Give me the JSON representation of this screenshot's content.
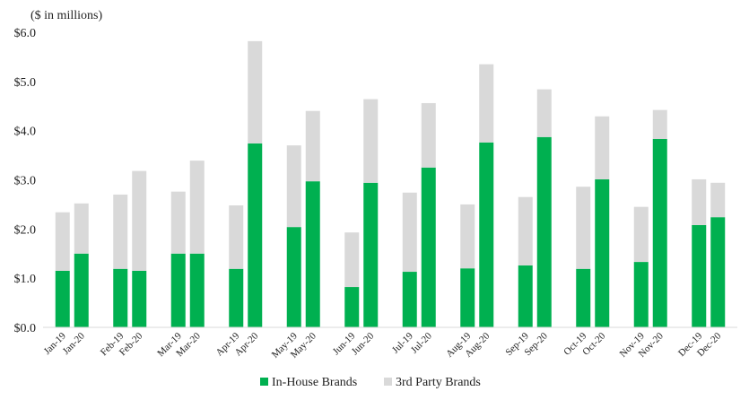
{
  "chart_data": {
    "type": "bar",
    "stacked": true,
    "unit_note": "($ in millions)",
    "ylim": [
      0,
      6
    ],
    "yticks": [
      "$0.0",
      "$1.0",
      "$2.0",
      "$3.0",
      "$4.0",
      "$5.0",
      "$6.0"
    ],
    "grid": false,
    "legend_placement": "bottom",
    "categories": [
      "Jan-19",
      "Jan-20",
      "Feb-19",
      "Feb-20",
      "Mar-19",
      "Mar-20",
      "Apr-19",
      "Apr-20",
      "May-19",
      "May-20",
      "Jun-19",
      "Jun-20",
      "Jul-19",
      "Jul-20",
      "Aug-19",
      "Aug-20",
      "Sep-19",
      "Sep-20",
      "Oct-19",
      "Oct-20",
      "Nov-19",
      "Nov-20",
      "Dec-19",
      "Dec-20"
    ],
    "series": [
      {
        "name": "In-House Brands",
        "color": "#00b050",
        "values": [
          1.15,
          1.5,
          1.19,
          1.15,
          1.5,
          1.5,
          1.19,
          3.74,
          2.04,
          2.97,
          0.82,
          2.94,
          1.13,
          3.25,
          1.2,
          3.76,
          1.26,
          3.87,
          1.19,
          3.01,
          1.33,
          3.83,
          2.08,
          2.24
        ]
      },
      {
        "name": "3rd Party Brands",
        "color": "#d9d9d9",
        "values": [
          1.19,
          1.02,
          1.51,
          2.03,
          1.26,
          1.89,
          1.29,
          2.08,
          1.66,
          1.43,
          1.11,
          1.7,
          1.61,
          1.31,
          1.3,
          1.59,
          1.39,
          0.97,
          1.67,
          1.28,
          1.12,
          0.59,
          0.93,
          0.7
        ]
      }
    ]
  }
}
